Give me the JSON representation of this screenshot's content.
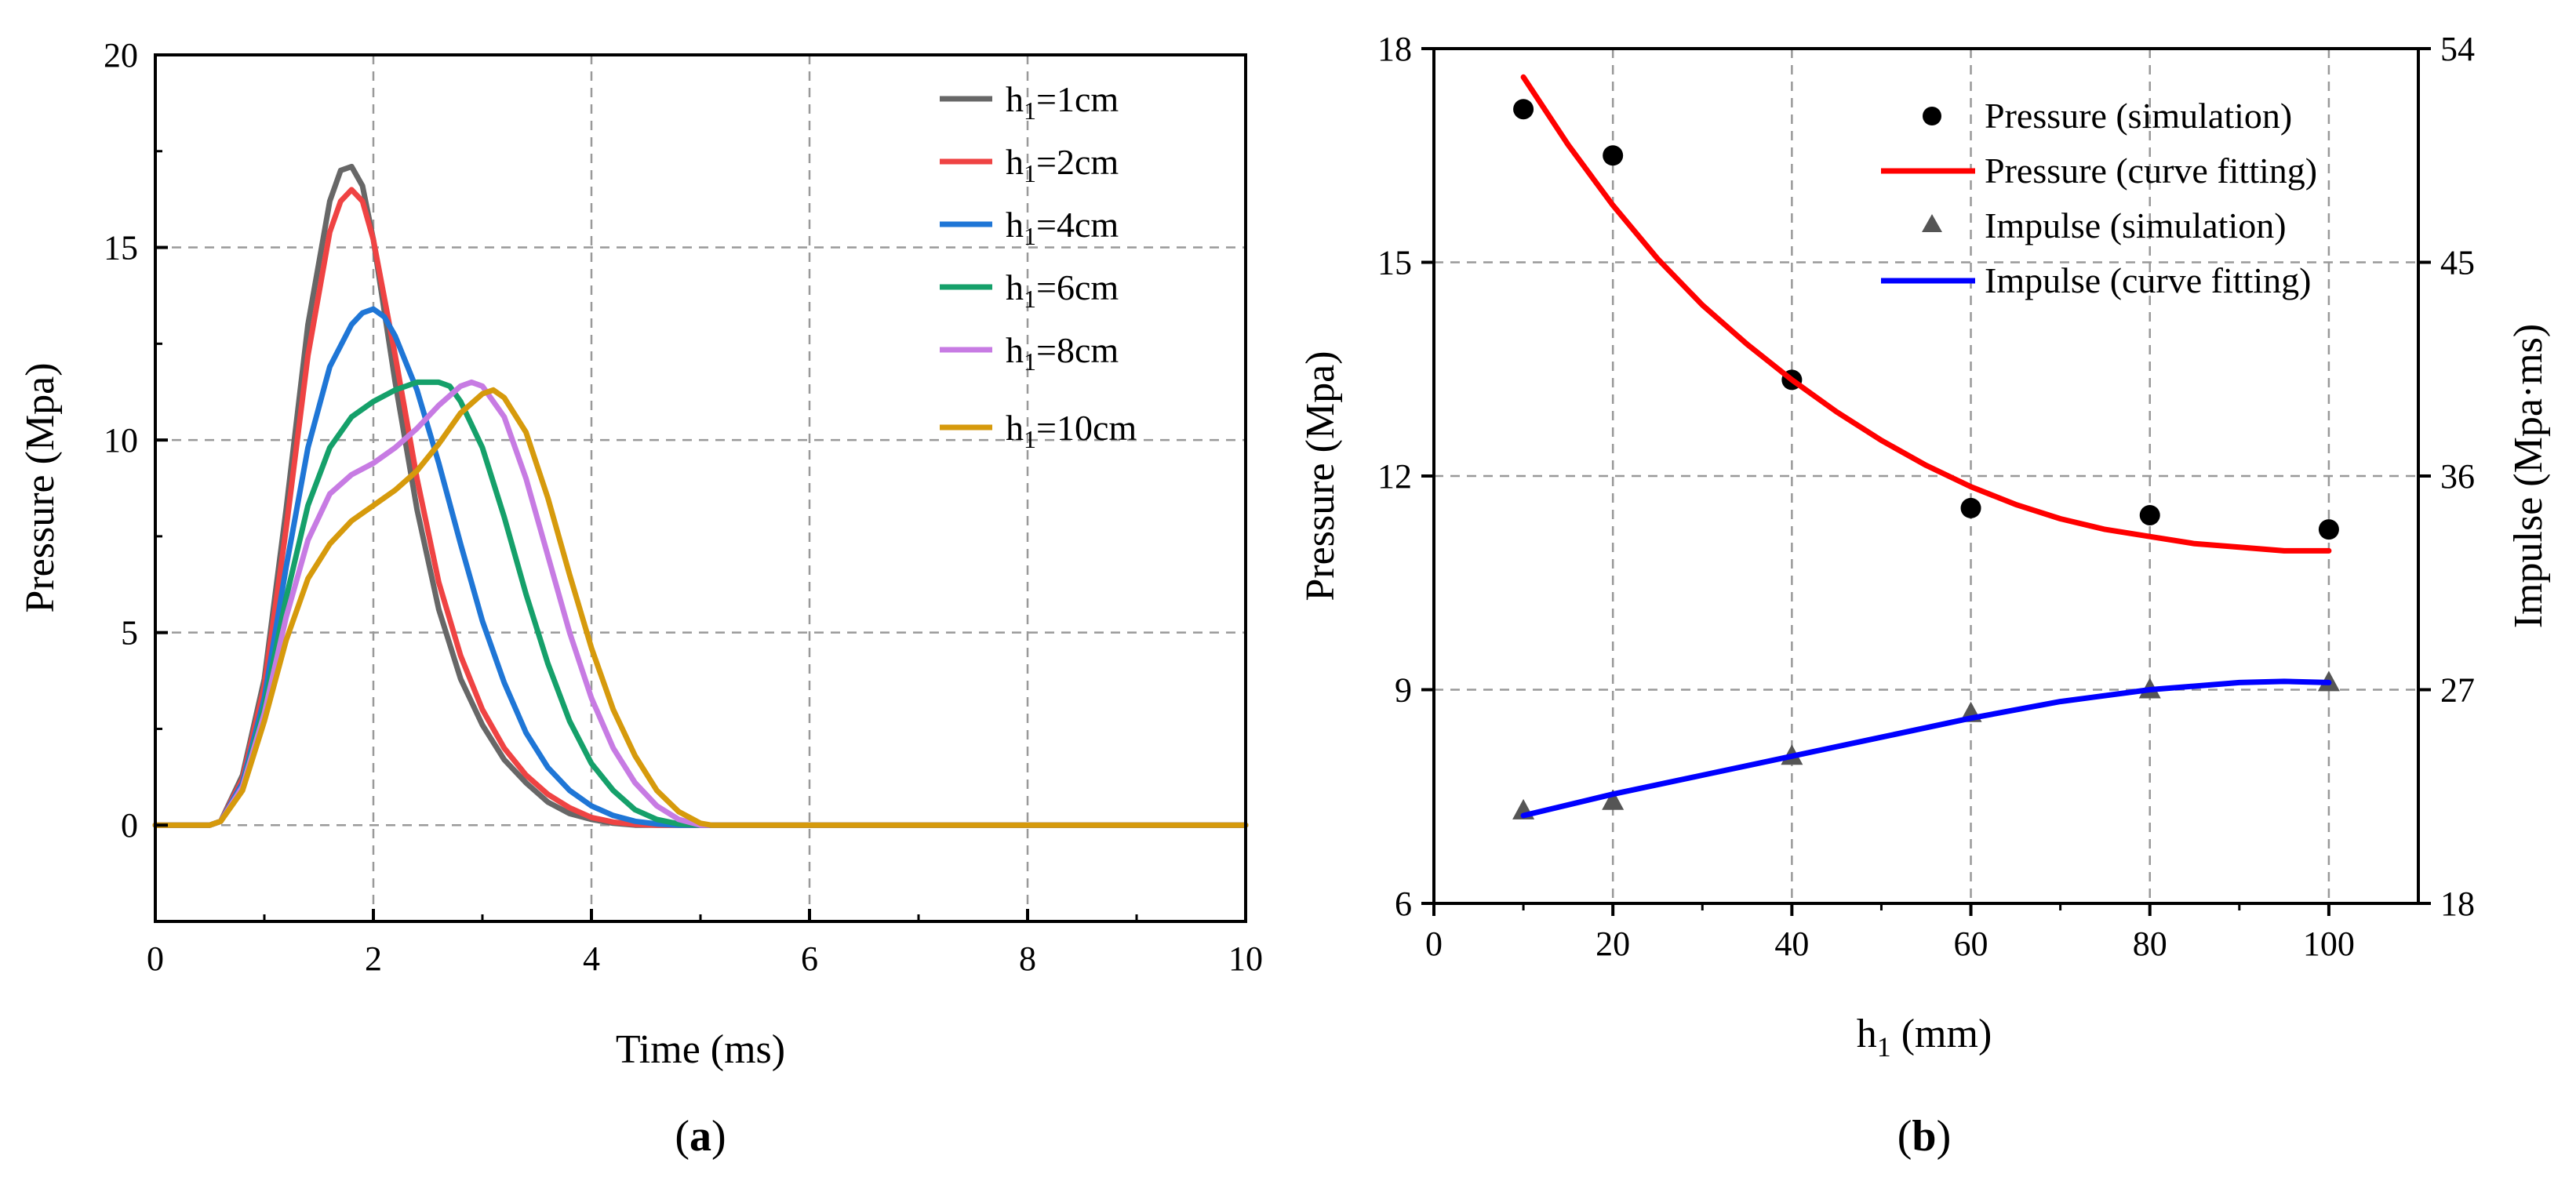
{
  "chart_data": [
    {
      "type": "line",
      "panel_label_parts": [
        "(",
        "a",
        ")"
      ],
      "xlabel": "Time (ms)",
      "ylabel": "Pressure (Mpa)",
      "xlim": [
        0,
        10
      ],
      "ylim": [
        -2.5,
        20
      ],
      "xticks": [
        0,
        2,
        4,
        6,
        8,
        10
      ],
      "xtick_labels": [
        "0",
        "2",
        "4",
        "6",
        "8",
        "10"
      ],
      "yticks": [
        0,
        5,
        10,
        15,
        20
      ],
      "ytick_labels": [
        "0",
        "5",
        "10",
        "15",
        "20"
      ],
      "grid": true,
      "legend_position": "top-right",
      "series": [
        {
          "name": "h1=1cm",
          "legend_main": "h",
          "legend_sub": "1",
          "legend_rest": "=1cm",
          "color": "#676767",
          "x": [
            0,
            0.5,
            0.6,
            0.8,
            1.0,
            1.2,
            1.4,
            1.6,
            1.7,
            1.8,
            1.9,
            2.0,
            2.2,
            2.4,
            2.6,
            2.8,
            3.0,
            3.2,
            3.4,
            3.6,
            3.8,
            4.0,
            4.2,
            4.4,
            5,
            10
          ],
          "y": [
            0,
            0,
            0.1,
            1.3,
            3.8,
            8.2,
            13.0,
            16.2,
            17.0,
            17.1,
            16.6,
            15.2,
            11.5,
            8.2,
            5.6,
            3.8,
            2.6,
            1.7,
            1.1,
            0.6,
            0.3,
            0.15,
            0.05,
            0,
            0,
            0
          ]
        },
        {
          "name": "h1=2cm",
          "legend_main": "h",
          "legend_sub": "1",
          "legend_rest": "=2cm",
          "color": "#ef4343",
          "x": [
            0,
            0.5,
            0.6,
            0.8,
            1.0,
            1.2,
            1.4,
            1.6,
            1.7,
            1.8,
            1.9,
            2.0,
            2.2,
            2.4,
            2.6,
            2.8,
            3.0,
            3.2,
            3.4,
            3.6,
            3.8,
            4.0,
            4.2,
            4.4,
            4.6,
            5,
            10
          ],
          "y": [
            0,
            0,
            0.1,
            1.2,
            3.6,
            7.7,
            12.2,
            15.4,
            16.2,
            16.5,
            16.2,
            15.2,
            12.2,
            9.0,
            6.3,
            4.4,
            3.0,
            2.0,
            1.3,
            0.8,
            0.45,
            0.2,
            0.08,
            0.02,
            0,
            0,
            0
          ]
        },
        {
          "name": "h1=4cm",
          "legend_main": "h",
          "legend_sub": "1",
          "legend_rest": "=4cm",
          "color": "#1f76d6",
          "x": [
            0,
            0.5,
            0.6,
            0.8,
            1.0,
            1.2,
            1.4,
            1.6,
            1.8,
            1.9,
            2.0,
            2.1,
            2.2,
            2.4,
            2.6,
            2.8,
            3.0,
            3.2,
            3.4,
            3.6,
            3.8,
            4.0,
            4.2,
            4.4,
            4.6,
            4.8,
            5,
            10
          ],
          "y": [
            0,
            0,
            0.1,
            1.1,
            3.3,
            6.7,
            9.8,
            11.9,
            13.0,
            13.3,
            13.4,
            13.2,
            12.7,
            11.3,
            9.4,
            7.3,
            5.3,
            3.7,
            2.4,
            1.5,
            0.9,
            0.5,
            0.25,
            0.1,
            0.03,
            0,
            0,
            0
          ]
        },
        {
          "name": "h1=6cm",
          "legend_main": "h",
          "legend_sub": "1",
          "legend_rest": "=6cm",
          "color": "#15a06a",
          "x": [
            0,
            0.5,
            0.6,
            0.8,
            1.0,
            1.2,
            1.4,
            1.6,
            1.8,
            2.0,
            2.2,
            2.4,
            2.6,
            2.7,
            2.8,
            3.0,
            3.2,
            3.4,
            3.6,
            3.8,
            4.0,
            4.2,
            4.4,
            4.6,
            4.8,
            5.0,
            10
          ],
          "y": [
            0,
            0,
            0.1,
            1.0,
            3.1,
            5.9,
            8.3,
            9.8,
            10.6,
            11.0,
            11.3,
            11.5,
            11.5,
            11.4,
            11.0,
            9.8,
            8.0,
            6.0,
            4.2,
            2.7,
            1.6,
            0.9,
            0.4,
            0.15,
            0.03,
            0,
            0
          ]
        },
        {
          "name": "h1=8cm",
          "legend_main": "h",
          "legend_sub": "1",
          "legend_rest": "=8cm",
          "color": "#c77be3",
          "x": [
            0,
            0.5,
            0.6,
            0.8,
            1.0,
            1.2,
            1.4,
            1.6,
            1.8,
            2.0,
            2.2,
            2.4,
            2.6,
            2.8,
            2.9,
            3.0,
            3.2,
            3.4,
            3.6,
            3.8,
            4.0,
            4.2,
            4.4,
            4.6,
            4.8,
            5.0,
            10
          ],
          "y": [
            0,
            0,
            0.1,
            1.0,
            2.9,
            5.4,
            7.4,
            8.6,
            9.1,
            9.4,
            9.8,
            10.3,
            10.9,
            11.4,
            11.5,
            11.4,
            10.6,
            9.0,
            7.0,
            5.0,
            3.3,
            2.0,
            1.1,
            0.5,
            0.15,
            0,
            0
          ]
        },
        {
          "name": "h1=10cm",
          "legend_main": "h",
          "legend_sub": "1",
          "legend_rest": "=10cm",
          "color": "#d69a0c",
          "x": [
            0,
            0.5,
            0.6,
            0.8,
            1.0,
            1.2,
            1.4,
            1.6,
            1.8,
            2.0,
            2.2,
            2.4,
            2.6,
            2.8,
            3.0,
            3.1,
            3.2,
            3.4,
            3.6,
            3.8,
            4.0,
            4.2,
            4.4,
            4.6,
            4.8,
            5.0,
            5.1,
            10
          ],
          "y": [
            0,
            0,
            0.1,
            0.9,
            2.7,
            4.8,
            6.4,
            7.3,
            7.9,
            8.3,
            8.7,
            9.2,
            9.9,
            10.7,
            11.2,
            11.3,
            11.1,
            10.2,
            8.5,
            6.5,
            4.6,
            3.0,
            1.8,
            0.9,
            0.35,
            0.05,
            0,
            0
          ]
        }
      ]
    },
    {
      "type": "scatter",
      "panel_label_parts": [
        "(",
        "b",
        ")"
      ],
      "xlabel_main": "h",
      "xlabel_sub": "1",
      "xlabel_rest": " (mm)",
      "ylabel": "Pressure (Mpa)",
      "y2label": "Impulse (Mpa·ms)",
      "xlim": [
        0,
        110
      ],
      "ylim": [
        6,
        18
      ],
      "y2lim": [
        18,
        54
      ],
      "xticks": [
        0,
        20,
        40,
        60,
        80,
        100
      ],
      "xtick_labels": [
        "0",
        "20",
        "40",
        "60",
        "80",
        "100"
      ],
      "yticks": [
        6,
        9,
        12,
        15,
        18
      ],
      "ytick_labels": [
        "6",
        "9",
        "12",
        "15",
        "18"
      ],
      "y2ticks": [
        18,
        27,
        36,
        45,
        54
      ],
      "y2tick_labels": [
        "18",
        "27",
        "36",
        "45",
        "54"
      ],
      "grid": true,
      "legend_position": "top-right",
      "series": [
        {
          "name": "Pressure (simulation)",
          "kind": "marker-circle",
          "axis": "left",
          "color": "#000000",
          "x": [
            10,
            20,
            40,
            60,
            80,
            100
          ],
          "y": [
            17.15,
            16.5,
            13.35,
            11.55,
            11.45,
            11.25
          ]
        },
        {
          "name": "Pressure (curve fitting)",
          "kind": "line",
          "axis": "left",
          "color": "#ff0000",
          "x": [
            10,
            15,
            20,
            25,
            30,
            35,
            40,
            45,
            50,
            55,
            60,
            65,
            70,
            75,
            80,
            85,
            90,
            95,
            100
          ],
          "y": [
            17.6,
            16.65,
            15.8,
            15.05,
            14.4,
            13.85,
            13.35,
            12.9,
            12.5,
            12.15,
            11.85,
            11.6,
            11.4,
            11.25,
            11.15,
            11.05,
            11.0,
            10.95,
            10.95
          ]
        },
        {
          "name": "Impulse (simulation)",
          "kind": "marker-triangle",
          "axis": "right",
          "color": "#555555",
          "x": [
            10,
            20,
            40,
            60,
            80,
            100
          ],
          "y": [
            21.9,
            22.3,
            24.2,
            26.0,
            27.0,
            27.3
          ]
        },
        {
          "name": "Impulse (curve fitting)",
          "kind": "line",
          "axis": "right",
          "color": "#0000ff",
          "x": [
            10,
            20,
            30,
            40,
            50,
            60,
            70,
            80,
            90,
            95,
            100
          ],
          "y": [
            21.7,
            22.6,
            23.4,
            24.2,
            25.0,
            25.8,
            26.5,
            27.0,
            27.3,
            27.35,
            27.3
          ]
        }
      ]
    }
  ]
}
